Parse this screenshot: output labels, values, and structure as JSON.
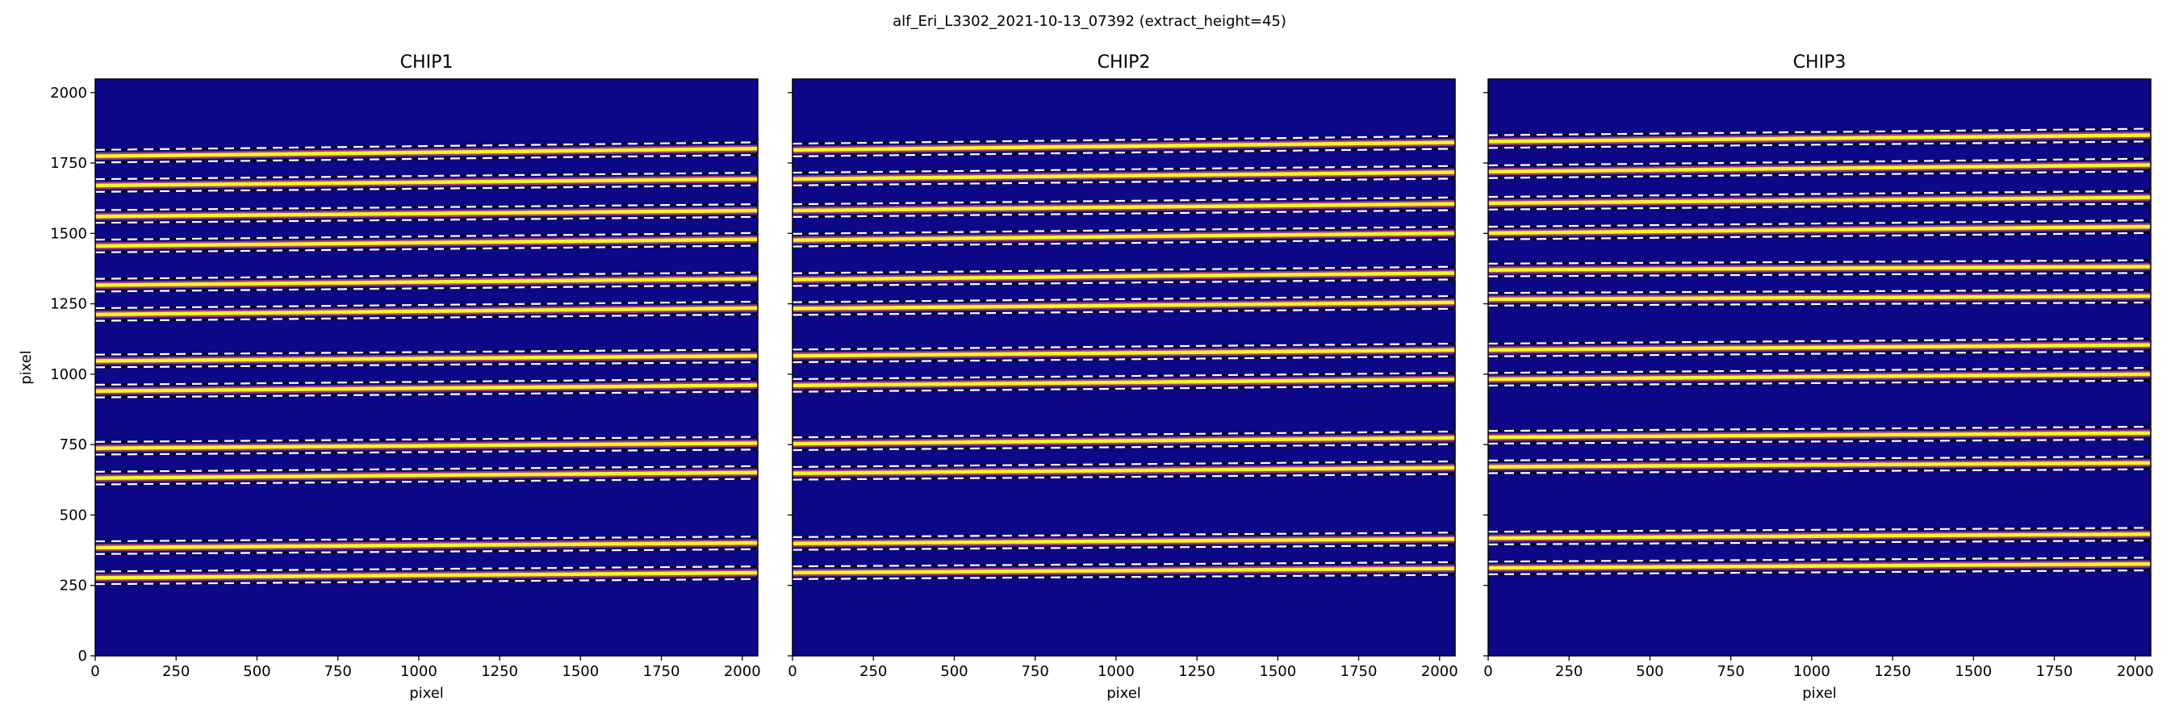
{
  "figure": {
    "suptitle": "alf_Eri_L3302_2021-10-13_07392  (extract_height=45)"
  },
  "colors": {
    "background": "#0d0887",
    "trace_core": "#f0f921",
    "trace_halo": "#cc4778",
    "bound_line": "#ffffff"
  },
  "chart_data": [
    {
      "type": "heatmap",
      "title": "CHIP1",
      "xlabel": "pixel",
      "ylabel": "pixel",
      "xlim": [
        0,
        2048
      ],
      "ylim": [
        0,
        2048
      ],
      "xticks": [
        "0",
        "250",
        "500",
        "750",
        "1000",
        "1250",
        "1500",
        "1750",
        "2000"
      ],
      "yticks": [
        "0",
        "250",
        "500",
        "750",
        "1000",
        "1250",
        "1500",
        "1750",
        "2000"
      ],
      "extract_height": 45,
      "traces": [
        [
          277,
          295
        ],
        [
          384,
          401
        ],
        [
          631,
          651
        ],
        [
          737,
          755
        ],
        [
          940,
          961
        ],
        [
          1047,
          1065
        ],
        [
          1212,
          1235
        ],
        [
          1316,
          1339
        ],
        [
          1455,
          1479
        ],
        [
          1560,
          1581
        ],
        [
          1670,
          1693
        ],
        [
          1774,
          1801
        ]
      ]
    },
    {
      "type": "heatmap",
      "title": "CHIP2",
      "xlabel": "pixel",
      "ylabel": "",
      "xlim": [
        0,
        2048
      ],
      "ylim": [
        0,
        2048
      ],
      "xticks": [
        "0",
        "250",
        "500",
        "750",
        "1000",
        "1250",
        "1500",
        "1750",
        "2000"
      ],
      "yticks": [],
      "extract_height": 45,
      "traces": [
        [
          295,
          310
        ],
        [
          399,
          415
        ],
        [
          648,
          668
        ],
        [
          753,
          774
        ],
        [
          960,
          982
        ],
        [
          1065,
          1086
        ],
        [
          1233,
          1255
        ],
        [
          1336,
          1359
        ],
        [
          1476,
          1501
        ],
        [
          1581,
          1605
        ],
        [
          1693,
          1717
        ],
        [
          1796,
          1823
        ]
      ]
    },
    {
      "type": "heatmap",
      "title": "CHIP3",
      "xlabel": "pixel",
      "ylabel": "",
      "xlim": [
        0,
        2048
      ],
      "ylim": [
        0,
        2048
      ],
      "xticks": [
        "0",
        "250",
        "500",
        "750",
        "1000",
        "1250",
        "1500",
        "1750",
        "2000"
      ],
      "yticks": [],
      "extract_height": 45,
      "traces": [
        [
          312,
          326
        ],
        [
          418,
          432
        ],
        [
          671,
          685
        ],
        [
          776,
          791
        ],
        [
          982,
          1000
        ],
        [
          1086,
          1104
        ],
        [
          1266,
          1277
        ],
        [
          1370,
          1382
        ],
        [
          1501,
          1524
        ],
        [
          1607,
          1628
        ],
        [
          1719,
          1743
        ],
        [
          1826,
          1849
        ]
      ]
    }
  ]
}
